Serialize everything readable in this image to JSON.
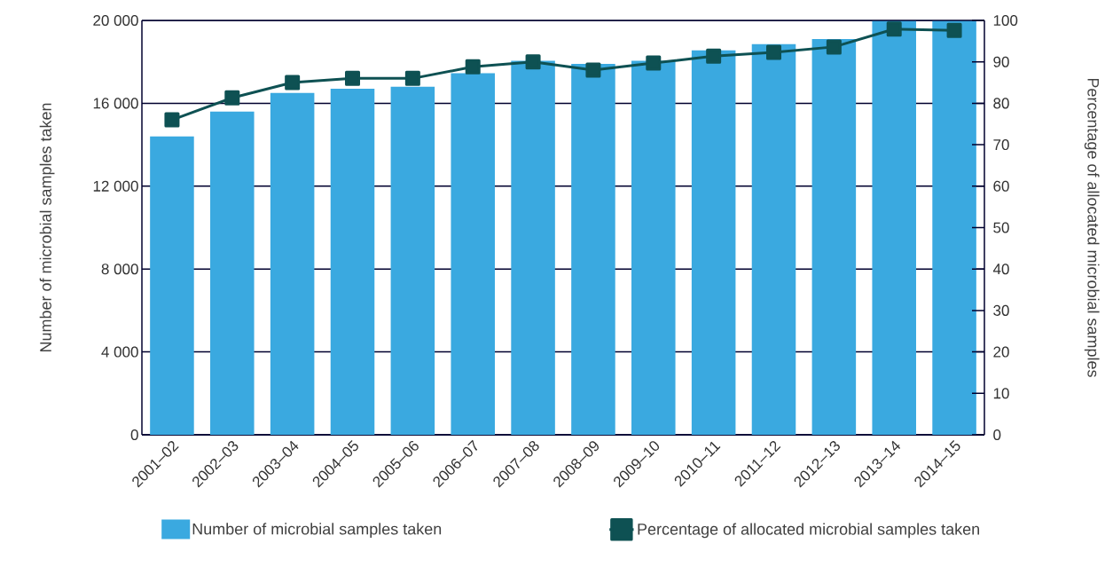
{
  "chart_data": {
    "type": "bar",
    "categories": [
      "2001–02",
      "2002–03",
      "2003–04",
      "2004–05",
      "2005–06",
      "2006–07",
      "2007–08",
      "2008–09",
      "2009–10",
      "2010–11",
      "2011–12",
      "2012–13",
      "2013–14",
      "2014–15"
    ],
    "series": [
      {
        "name": "Number of microbial samples taken",
        "color": "#3aa9e0",
        "values": [
          14400,
          15600,
          16500,
          16700,
          16800,
          17450,
          18050,
          17900,
          18050,
          18550,
          18850,
          19100,
          20000,
          20000
        ]
      },
      {
        "name": "Percentage of allocated microbial samples taken",
        "color": "#0e5153",
        "type": "line",
        "axis": "y2",
        "values": [
          76,
          81.3,
          85,
          86,
          86,
          88.8,
          90,
          88,
          89.7,
          91.4,
          92.3,
          93.6,
          97.9,
          97.6
        ]
      }
    ],
    "ylabel": "Number of microbial samples taken",
    "y2label": "Percentage of allocated microbial samples",
    "ylim": [
      0,
      20000
    ],
    "yticks": [
      0,
      {
        "value": 4000,
        "label": "4 000"
      },
      {
        "value": 8000,
        "label": "8 000"
      },
      {
        "value": 12000,
        "label": "12 000"
      },
      {
        "value": 16000,
        "label": "16 000"
      },
      {
        "value": 20000,
        "label": "20 000"
      }
    ],
    "y2lim": [
      0,
      100
    ],
    "y2ticks": [
      0,
      10,
      20,
      30,
      40,
      50,
      60,
      70,
      80,
      90,
      100
    ],
    "grid": "y",
    "legend": "bottom",
    "marker": "square",
    "line_style": "solid"
  }
}
